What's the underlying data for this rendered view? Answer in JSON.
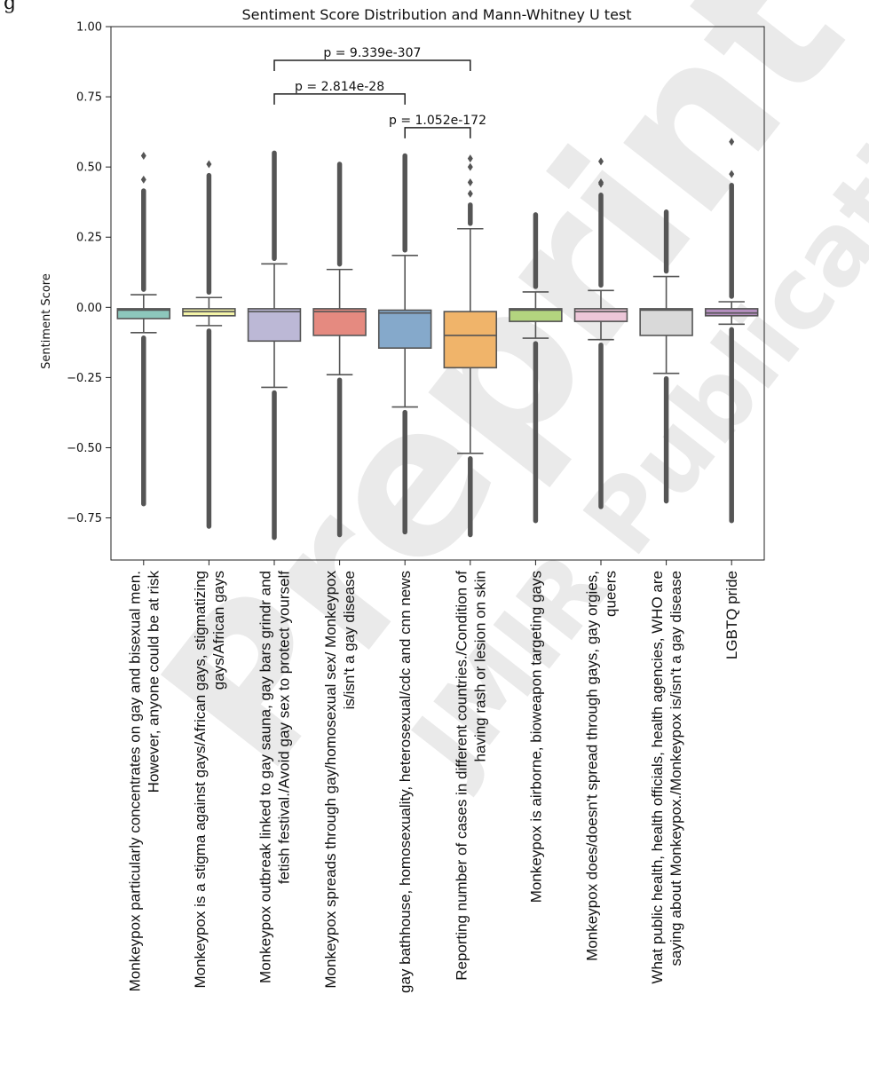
{
  "header_fragment": "g",
  "chart_data": {
    "type": "box",
    "title": "Sentiment Score Distribution and Mann-Whitney U test",
    "ylabel": "Sentiment Score",
    "xlabel": "",
    "ylim": [
      -0.9,
      1.0
    ],
    "yticks": [
      "1.00",
      "0.75",
      "0.50",
      "0.25",
      "0.00",
      "−0.25",
      "−0.50",
      "−0.75"
    ],
    "yticks_values": [
      1.0,
      0.75,
      0.5,
      0.25,
      0.0,
      -0.25,
      -0.5,
      -0.75
    ],
    "categories": [
      [
        "Monkeypox particularly concentrates on gay and bisexual men.",
        "However, anyone could be at risk"
      ],
      [
        "Monkeypox is a stigma against gays/African gays, stigmatizing",
        "gays/African gays"
      ],
      [
        "Monkeypox outbreak linked to gay sauna, gay bars grindr and",
        "fetish festival./Avoid gay sex to protect yourself"
      ],
      [
        "Monkeypox spreads through gay/homosexual sex/ Monkeypox",
        "is/isn't a gay disease"
      ],
      [
        "gay bathhouse, homosexuality, heterosexual/cdc and cnn news"
      ],
      [
        "Reporting number of cases in different countries./Condition of",
        "having rash or lesion on skin"
      ],
      [
        "Monkeypox is airborne, bioweapon targeting gays"
      ],
      [
        "Monkeypox does/doesn't spread through gays, gay orgies,",
        "queers"
      ],
      [
        "What public health, health officials, health agencies, WHO are",
        "saying about Monkeypox./Monkeypox is/isn't a gay disease"
      ],
      [
        "LGBTQ pride"
      ]
    ],
    "boxes": [
      {
        "color": "#8dc7bc",
        "q1": -0.04,
        "median": -0.01,
        "q3": -0.005,
        "whisker_low": -0.09,
        "whisker_high": 0.045,
        "outlier_low": -0.7,
        "outlier_high": 0.54,
        "sparse_high": [
          0.54,
          0.455
        ]
      },
      {
        "color": "#f4f4a8",
        "q1": -0.03,
        "median": -0.015,
        "q3": -0.005,
        "whisker_low": -0.065,
        "whisker_high": 0.035,
        "outlier_low": -0.78,
        "outlier_high": 0.51,
        "sparse_high": [
          0.51
        ]
      },
      {
        "color": "#bcb8d6",
        "q1": -0.12,
        "median": -0.015,
        "q3": -0.005,
        "whisker_low": -0.285,
        "whisker_high": 0.155,
        "outlier_low": -0.82,
        "outlier_high": 0.55,
        "sparse_high": []
      },
      {
        "color": "#e58a80",
        "q1": -0.1,
        "median": -0.015,
        "q3": -0.005,
        "whisker_low": -0.24,
        "whisker_high": 0.135,
        "outlier_low": -0.81,
        "outlier_high": 0.51,
        "sparse_high": []
      },
      {
        "color": "#85a9cb",
        "q1": -0.145,
        "median": -0.02,
        "q3": -0.01,
        "whisker_low": -0.355,
        "whisker_high": 0.185,
        "outlier_low": -0.8,
        "outlier_high": 0.54,
        "sparse_high": []
      },
      {
        "color": "#f0b46a",
        "q1": -0.215,
        "median": -0.1,
        "q3": -0.015,
        "whisker_low": -0.52,
        "whisker_high": 0.28,
        "outlier_low": -0.81,
        "outlier_high": 0.53,
        "sparse_high": [
          0.53,
          0.5,
          0.445,
          0.405
        ]
      },
      {
        "color": "#b3d47f",
        "q1": -0.05,
        "median": -0.01,
        "q3": -0.005,
        "whisker_low": -0.11,
        "whisker_high": 0.055,
        "outlier_low": -0.76,
        "outlier_high": 0.33,
        "sparse_high": []
      },
      {
        "color": "#ecc6d8",
        "q1": -0.05,
        "median": -0.015,
        "q3": -0.005,
        "whisker_low": -0.115,
        "whisker_high": 0.06,
        "outlier_low": -0.71,
        "outlier_high": 0.52,
        "sparse_high": [
          0.52,
          0.445,
          0.44
        ]
      },
      {
        "color": "#d9d9d9",
        "q1": -0.1,
        "median": -0.01,
        "q3": -0.005,
        "whisker_low": -0.235,
        "whisker_high": 0.11,
        "outlier_low": -0.69,
        "outlier_high": 0.34,
        "sparse_high": []
      },
      {
        "color": "#b58fc0",
        "q1": -0.03,
        "median": -0.02,
        "q3": -0.005,
        "whisker_low": -0.06,
        "whisker_high": 0.02,
        "outlier_low": -0.76,
        "outlier_high": 0.59,
        "sparse_high": [
          0.59,
          0.475
        ]
      }
    ],
    "comparisons": [
      {
        "from": 2,
        "to": 5,
        "y": 0.88,
        "label": "p = 9.339e-307"
      },
      {
        "from": 2,
        "to": 4,
        "y": 0.76,
        "label": "p = 2.814e-28"
      },
      {
        "from": 4,
        "to": 5,
        "y": 0.64,
        "label": "p = 1.052e-172"
      }
    ]
  },
  "watermark": {
    "big": "Preprint",
    "small": "JMIR Publications",
    "color": "#d9d9d9"
  }
}
